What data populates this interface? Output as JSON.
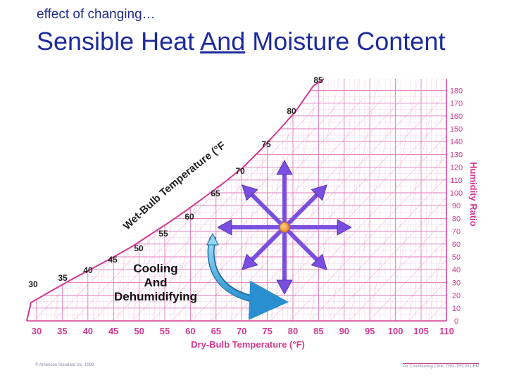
{
  "header": {
    "subtitle": "effect of changing…",
    "title_before": "Sensible Heat ",
    "title_and": "And",
    "title_after": " Moisture Content"
  },
  "chart": {
    "x_axis_label": "Dry-Bulb Temperature (°F)",
    "y_axis_label": "Humidity Ratio",
    "wet_bulb_label": "Wet-Bulb Temperature (°F)",
    "dry_bulb_ticks": [
      "30",
      "35",
      "40",
      "45",
      "50",
      "55",
      "60",
      "65",
      "70",
      "75",
      "80",
      "85",
      "90",
      "95",
      "100",
      "105",
      "110"
    ],
    "humidity_ratio_ticks": [
      "0",
      "10",
      "20",
      "30",
      "40",
      "50",
      "60",
      "70",
      "80",
      "90",
      "100",
      "110",
      "120",
      "130",
      "140",
      "150",
      "160",
      "170",
      "180"
    ],
    "wet_bulb_ticks": [
      "30",
      "35",
      "40",
      "45",
      "50",
      "55",
      "60",
      "65",
      "70",
      "75",
      "80",
      "85"
    ],
    "process_label": [
      "Cooling",
      "And",
      "Dehumidifying"
    ],
    "colors": {
      "grid": "#e07bb5",
      "axis_text": "#d4398f",
      "arrows": "#7a4fe0",
      "center": "#f0a040",
      "process_arrow": "#4fb8e0"
    }
  },
  "footer": {
    "left": "© American Standard Inc. 1999",
    "right": "Air Conditioning Clinic TRG-TRC001-EN"
  }
}
